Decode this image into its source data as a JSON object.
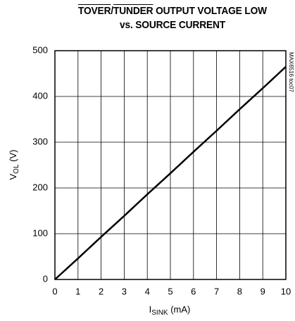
{
  "chart_data": {
    "type": "line",
    "title_line1": [
      "TOVER",
      "/",
      "TUNDER",
      " OUTPUT VOLTAGE LOW"
    ],
    "title_line2": "vs. SOURCE CURRENT",
    "x_label": [
      "I",
      "SINK",
      " (mA)"
    ],
    "y_label": [
      "V",
      "OL",
      " (V)"
    ],
    "side_note": "MAX6516 toc07",
    "x": [
      0,
      1,
      2,
      3,
      4,
      5,
      6,
      7,
      8,
      9,
      10
    ],
    "series": [
      {
        "color": "#000000",
        "values": [
          0,
          46,
          93,
          139,
          186,
          232,
          279,
          325,
          372,
          418,
          465
        ]
      }
    ],
    "xlim": [
      0,
      10
    ],
    "xticks": [
      0,
      1,
      2,
      3,
      4,
      5,
      6,
      7,
      8,
      9,
      10
    ],
    "ylim": [
      0,
      500
    ],
    "yticks": [
      0,
      100,
      200,
      300,
      400,
      500
    ],
    "grid": true
  }
}
